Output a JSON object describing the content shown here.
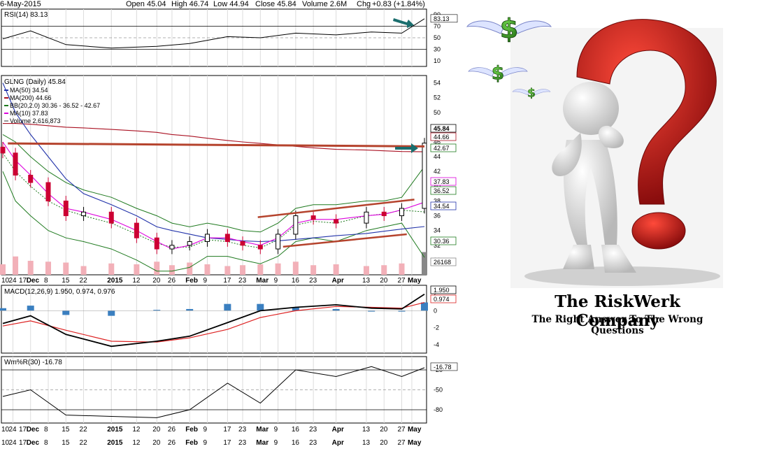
{
  "header": {
    "date": "6-May-2015",
    "open": "Open 45.04",
    "high": "High 46.74",
    "low": "Low 44.94",
    "close": "Close 45.84",
    "volume": "Volume 2.6M",
    "chg_label": "Chg",
    "chg_value": "+0.83 (+1.84%)"
  },
  "colors": {
    "up": "#000000",
    "down": "#cc0033",
    "ma50": "#2233aa",
    "ma200": "#aa1122",
    "bb": "#1f7a1f",
    "ma10": "#dd00dd",
    "macd_line": "#000000",
    "macd_signal": "#dd2222",
    "hist": "#3a7fc0",
    "trendline": "#b5432d",
    "arrow": "#1b6e6e"
  },
  "icons": [
    "winged-dollar-icon",
    "arrow-right-icon",
    "question-mark-figure-icon"
  ],
  "chart_data": [
    {
      "type": "line",
      "panel": "rsi",
      "title": "RSI(14) 83.13",
      "ytick_labels": [
        "90",
        "70",
        "50",
        "30",
        "10"
      ],
      "ylim": [
        0,
        100
      ],
      "reference_lines": [
        70,
        30
      ],
      "last_value_label": "83.13",
      "x": [
        "2014-11-20",
        "2014-12-01",
        "2014-12-15",
        "2015-01-02",
        "2015-01-20",
        "2015-02-02",
        "2015-02-17",
        "2015-03-02",
        "2015-03-16",
        "2015-04-01",
        "2015-04-15",
        "2015-04-27",
        "2015-05-06"
      ],
      "values": [
        48,
        62,
        38,
        32,
        35,
        40,
        52,
        50,
        58,
        55,
        60,
        58,
        83.13
      ]
    },
    {
      "type": "candlestick",
      "panel": "price",
      "title": "GLNG (Daily) 45.84",
      "legend": [
        {
          "label": "MA(50) 34.54"
        },
        {
          "label": "MA(200) 44.66"
        },
        {
          "label": "BB(20,2.0) 30.36 - 36.52 - 42.67"
        },
        {
          "label": "MA(10) 37.83"
        },
        {
          "label": "Volume 2,616,873"
        }
      ],
      "ytick_labels": [
        "54",
        "52",
        "50",
        "48",
        "46",
        "44",
        "42",
        "40",
        "38",
        "36",
        "34",
        "32",
        "30"
      ],
      "ylim": [
        28,
        55
      ],
      "price_tags": [
        "45.84",
        "44.66",
        "42.67",
        "37.83",
        "36.52",
        "34.54",
        "30.36",
        "26168"
      ],
      "x": [
        "2014-11-20",
        "2014-11-25",
        "2014-12-01",
        "2014-12-08",
        "2014-12-15",
        "2014-12-22",
        "2015-01-02",
        "2015-01-12",
        "2015-01-20",
        "2015-01-26",
        "2015-02-02",
        "2015-02-09",
        "2015-02-17",
        "2015-02-23",
        "2015-03-02",
        "2015-03-09",
        "2015-03-16",
        "2015-03-23",
        "2015-04-01",
        "2015-04-13",
        "2015-04-20",
        "2015-04-27",
        "2015-05-06"
      ],
      "close": [
        44.5,
        41.5,
        40.5,
        38.0,
        36.0,
        36.5,
        35.0,
        33.0,
        31.5,
        32.0,
        32.5,
        33.5,
        32.5,
        32.0,
        31.5,
        33.5,
        36.0,
        35.5,
        35.0,
        36.5,
        36.0,
        37.0,
        45.84
      ],
      "ma50": [
        54.0,
        50.0,
        47.0,
        44.0,
        41.0,
        39.0,
        37.5,
        36.0,
        34.5,
        34.0,
        33.5,
        33.0,
        32.8,
        32.6,
        32.5,
        32.6,
        32.8,
        33.0,
        33.3,
        33.6,
        33.9,
        34.2,
        34.54
      ],
      "ma200": [
        48.5,
        48.5,
        48.4,
        48.2,
        48.0,
        47.9,
        47.7,
        47.5,
        47.3,
        47.0,
        46.8,
        46.5,
        46.2,
        46.0,
        45.8,
        45.6,
        45.4,
        45.2,
        45.0,
        44.9,
        44.8,
        44.7,
        44.66
      ],
      "ma10": [
        46.0,
        43.5,
        41.5,
        39.0,
        37.0,
        36.5,
        35.5,
        34.0,
        32.5,
        31.5,
        32.0,
        33.0,
        33.0,
        32.5,
        32.0,
        33.0,
        35.0,
        35.5,
        35.5,
        36.0,
        36.2,
        36.8,
        37.83
      ],
      "bb_upper": [
        47.0,
        46.0,
        44.0,
        42.0,
        40.5,
        39.5,
        38.5,
        37.0,
        36.0,
        35.0,
        34.5,
        35.0,
        34.5,
        34.0,
        33.8,
        35.0,
        37.0,
        37.5,
        37.5,
        38.0,
        38.0,
        38.5,
        42.67
      ],
      "bb_lower": [
        42.0,
        38.0,
        36.0,
        34.0,
        33.0,
        32.5,
        31.5,
        30.0,
        28.5,
        28.5,
        29.0,
        30.5,
        30.5,
        30.0,
        29.5,
        30.5,
        32.5,
        33.0,
        32.5,
        34.0,
        34.5,
        35.0,
        30.36
      ],
      "volume_millions": [
        1.2,
        2.1,
        1.6,
        1.5,
        1.4,
        1.0,
        1.3,
        1.2,
        1.5,
        1.1,
        1.4,
        1.2,
        1.0,
        1.1,
        1.2,
        1.3,
        1.5,
        1.1,
        1.2,
        1.0,
        1.1,
        1.3,
        2.6
      ]
    },
    {
      "type": "line",
      "panel": "macd",
      "title": "MACD(12,26,9) 1.950, 0.974, 0.976",
      "ytick_labels": [
        "2",
        "0",
        "-2",
        "-4"
      ],
      "ylim": [
        -5,
        3
      ],
      "last_value_labels": [
        "1.950",
        "0.974"
      ],
      "x": [
        "2014-11-20",
        "2014-12-01",
        "2014-12-15",
        "2015-01-02",
        "2015-01-20",
        "2015-02-02",
        "2015-02-17",
        "2015-03-02",
        "2015-03-16",
        "2015-04-01",
        "2015-04-15",
        "2015-04-27",
        "2015-05-06"
      ],
      "macd": [
        -1.5,
        -0.6,
        -2.8,
        -4.2,
        -3.6,
        -3.0,
        -1.4,
        0.0,
        0.4,
        0.7,
        0.3,
        0.2,
        1.95
      ],
      "signal": [
        -1.8,
        -1.2,
        -2.3,
        -3.6,
        -3.7,
        -3.2,
        -2.2,
        -0.8,
        0.0,
        0.5,
        0.4,
        0.3,
        0.974
      ],
      "histogram": [
        0.3,
        0.6,
        -0.5,
        -0.6,
        0.1,
        0.2,
        0.8,
        0.8,
        0.4,
        0.2,
        -0.1,
        -0.1,
        0.976
      ]
    },
    {
      "type": "line",
      "panel": "williams",
      "title": "Wm%R(30) -16.78",
      "ytick_labels": [
        "-20",
        "-50",
        "-80"
      ],
      "ylim": [
        -100,
        0
      ],
      "reference_lines": [
        -20,
        -80
      ],
      "last_value_label": "-16.78",
      "x": [
        "2014-11-20",
        "2014-12-01",
        "2014-12-15",
        "2015-01-02",
        "2015-01-20",
        "2015-02-02",
        "2015-02-17",
        "2015-03-02",
        "2015-03-16",
        "2015-04-01",
        "2015-04-15",
        "2015-04-27",
        "2015-05-06"
      ],
      "values": [
        -60,
        -50,
        -88,
        -90,
        -92,
        -80,
        -40,
        -70,
        -20,
        -30,
        -15,
        -30,
        -16.78
      ]
    }
  ],
  "x_axis": {
    "row1": [
      "10",
      "17",
      "24",
      "Dec",
      "8",
      "15",
      "22",
      "2015",
      "12",
      "20",
      "26",
      "Feb",
      "9",
      "17",
      "23",
      "Mar",
      "9",
      "16",
      "23",
      "Apr",
      "13",
      "20",
      "27",
      "May"
    ],
    "row2": [
      "10",
      "17",
      "24",
      "Dec",
      "8",
      "15",
      "22",
      "2015",
      "12",
      "20",
      "26",
      "Feb",
      "9",
      "17",
      "23",
      "Mar",
      "9",
      "16",
      "23",
      "Apr",
      "13",
      "20",
      "27",
      "May"
    ]
  },
  "brand": {
    "name": "The RiskWerk Company",
    "tagline": "The Right Answer To The Wrong Questions"
  }
}
